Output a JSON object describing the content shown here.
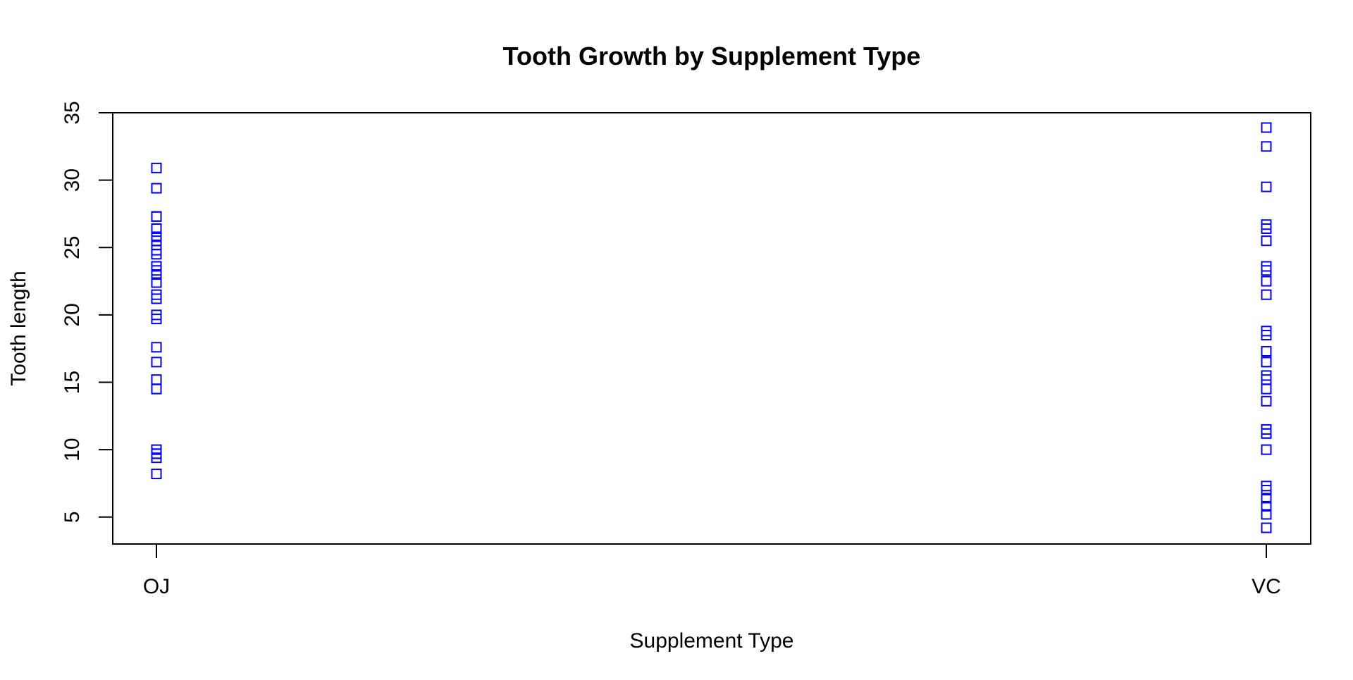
{
  "chart_data": {
    "type": "scatter",
    "title": "Tooth Growth by Supplement Type",
    "xlabel": "Supplement Type",
    "ylabel": "Tooth length",
    "categories": [
      "OJ",
      "VC"
    ],
    "ylim": [
      3,
      35
    ],
    "yticks": [
      5,
      10,
      15,
      20,
      25,
      30,
      35
    ],
    "grid": false,
    "marker": "open-square",
    "marker_color": "#0000ff",
    "series": [
      {
        "category": "OJ",
        "values": [
          15.2,
          21.5,
          17.6,
          9.7,
          14.5,
          10.0,
          8.2,
          9.4,
          16.5,
          9.7,
          19.7,
          23.3,
          23.6,
          26.4,
          20.0,
          25.2,
          25.8,
          21.2,
          14.5,
          27.3,
          25.5,
          26.4,
          22.4,
          24.5,
          24.8,
          30.9,
          26.4,
          27.3,
          29.4,
          23.0
        ]
      },
      {
        "category": "VC",
        "values": [
          4.2,
          11.5,
          7.3,
          5.8,
          6.4,
          10.0,
          11.2,
          11.2,
          5.2,
          7.0,
          16.5,
          16.5,
          15.2,
          17.3,
          22.5,
          17.3,
          13.6,
          14.5,
          18.8,
          15.5,
          23.6,
          18.5,
          33.9,
          25.5,
          26.4,
          32.5,
          26.7,
          21.5,
          23.3,
          29.5
        ]
      }
    ]
  }
}
